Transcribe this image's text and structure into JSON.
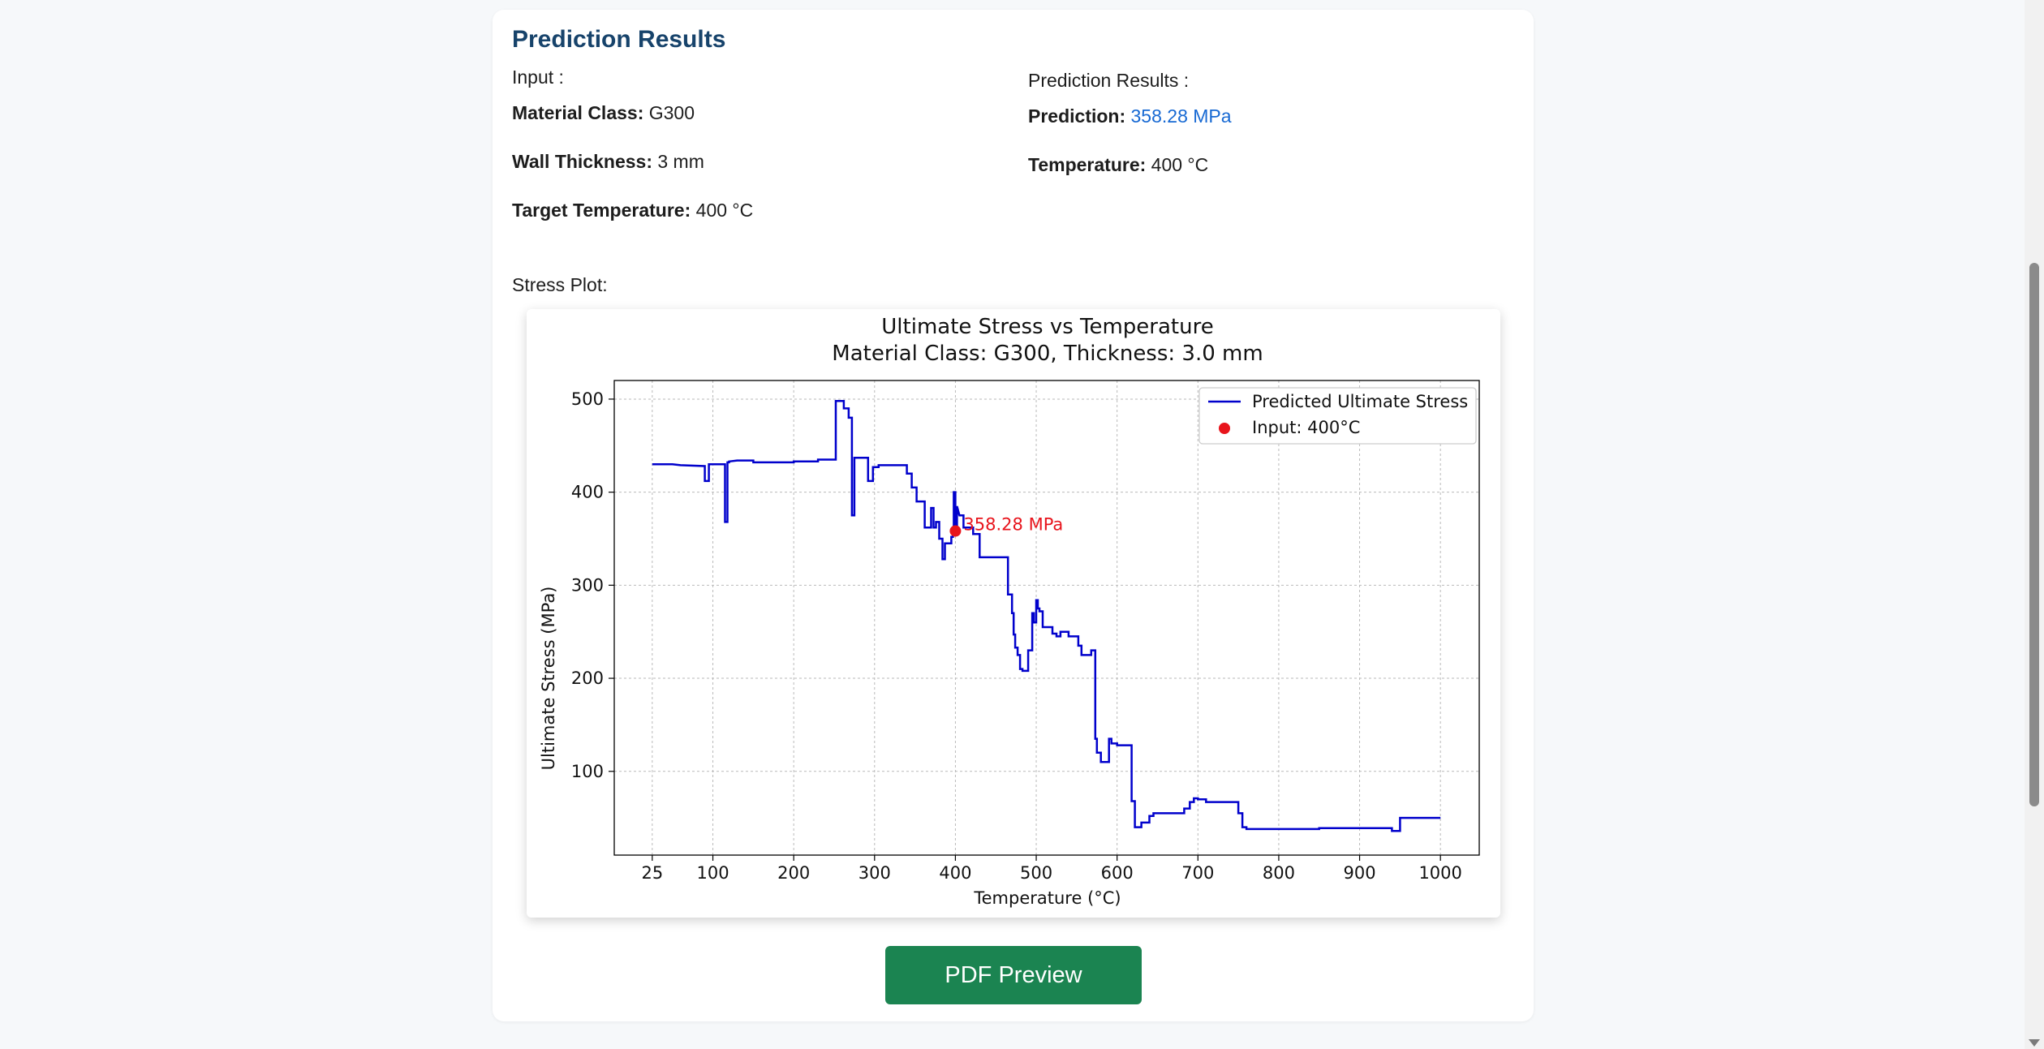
{
  "card": {
    "title": "Prediction Results",
    "input_heading": "Input :",
    "material_class_label": "Material Class:",
    "material_class_value": " G300",
    "wall_thickness_label": "Wall Thickness:",
    "wall_thickness_value": " 3 mm",
    "target_temp_label": "Target Temperature:",
    "target_temp_value": " 400 °C",
    "results_heading": "Prediction Results :",
    "prediction_label": "Prediction:",
    "prediction_value": " 358.28 MPa",
    "temperature_label": "Temperature:",
    "temperature_value": " 400 °C",
    "stress_plot_label": "Stress Plot:",
    "pdf_button": "PDF Preview"
  },
  "colors": {
    "title": "#17436b",
    "prediction_value": "#1769d3",
    "button": "#1b8451",
    "series_line": "#0000cc",
    "input_point": "#e8141c"
  },
  "chart_data": {
    "type": "line",
    "title": "Ultimate Stress vs Temperature",
    "subtitle": "Material Class: G300, Thickness: 3.0 mm",
    "xlabel": "Temperature (°C)",
    "ylabel": "Ultimate Stress (MPa)",
    "xlim": [
      -22,
      1048
    ],
    "ylim": [
      10,
      520
    ],
    "xticks": [
      25,
      100,
      200,
      300,
      400,
      500,
      600,
      700,
      800,
      900,
      1000
    ],
    "yticks": [
      100,
      200,
      300,
      400,
      500
    ],
    "grid": true,
    "legend_position": "top-right",
    "series": [
      {
        "name": "Predicted Ultimate Stress",
        "x": [
          25,
          50,
          60,
          90,
          90,
          95,
          95,
          115,
          115,
          118,
          118,
          120,
          120,
          130,
          150,
          150,
          200,
          200,
          230,
          230,
          252,
          252,
          262,
          262,
          268,
          268,
          272,
          272,
          275,
          275,
          292,
          292,
          298,
          298,
          305,
          305,
          340,
          340,
          346,
          346,
          352,
          352,
          362,
          362,
          370,
          370,
          373,
          373,
          376,
          376,
          380,
          380,
          384,
          384,
          387,
          387,
          395,
          395,
          397,
          397,
          398,
          398,
          400,
          400,
          402,
          402,
          405,
          410,
          410,
          422,
          422,
          430,
          430,
          465,
          465,
          470,
          470,
          472,
          472,
          474,
          474,
          477,
          477,
          480,
          480,
          483,
          483,
          490,
          490,
          495,
          495,
          497,
          497,
          500,
          500,
          502,
          502,
          504,
          504,
          508,
          508,
          520,
          520,
          525,
          525,
          530,
          530,
          540,
          540,
          552,
          552,
          556,
          556,
          568,
          568,
          573,
          573,
          575,
          575,
          580,
          580,
          590,
          590,
          593,
          593,
          600,
          600,
          618,
          618,
          622,
          622,
          630,
          630,
          640,
          640,
          645,
          645,
          683,
          683,
          690,
          690,
          695,
          695,
          700,
          700,
          710,
          710,
          750,
          750,
          755,
          755,
          760,
          760,
          850,
          850,
          940,
          940,
          950,
          950,
          1000
        ],
        "y": [
          430,
          430,
          429,
          428,
          412,
          412,
          430,
          430,
          368,
          368,
          432,
          432,
          433,
          434,
          434,
          432,
          432,
          433,
          433,
          435,
          435,
          498,
          498,
          490,
          490,
          480,
          480,
          375,
          375,
          437,
          437,
          412,
          412,
          427,
          427,
          429,
          429,
          420,
          420,
          405,
          405,
          390,
          390,
          362,
          362,
          383,
          383,
          362,
          362,
          368,
          368,
          350,
          350,
          328,
          328,
          345,
          345,
          352,
          352,
          362,
          362,
          400,
          400,
          358,
          358,
          385,
          375,
          375,
          362,
          362,
          355,
          355,
          330,
          330,
          290,
          290,
          270,
          270,
          247,
          247,
          233,
          233,
          225,
          225,
          210,
          210,
          208,
          208,
          230,
          230,
          270,
          270,
          260,
          260,
          284,
          284,
          275,
          275,
          272,
          272,
          255,
          255,
          248,
          248,
          245,
          245,
          250,
          250,
          245,
          245,
          235,
          235,
          225,
          225,
          230,
          230,
          135,
          135,
          120,
          120,
          110,
          110,
          135,
          135,
          130,
          130,
          128,
          128,
          68,
          68,
          40,
          40,
          45,
          45,
          52,
          52,
          55,
          55,
          60,
          60,
          67,
          67,
          71,
          71,
          70,
          70,
          67,
          67,
          55,
          55,
          40,
          40,
          38,
          38,
          39,
          39,
          36,
          36,
          50,
          50
        ]
      }
    ],
    "input_point": {
      "name": "Input: 400°C",
      "x": 400,
      "y": 358.28,
      "label": "358.28 MPa"
    }
  }
}
